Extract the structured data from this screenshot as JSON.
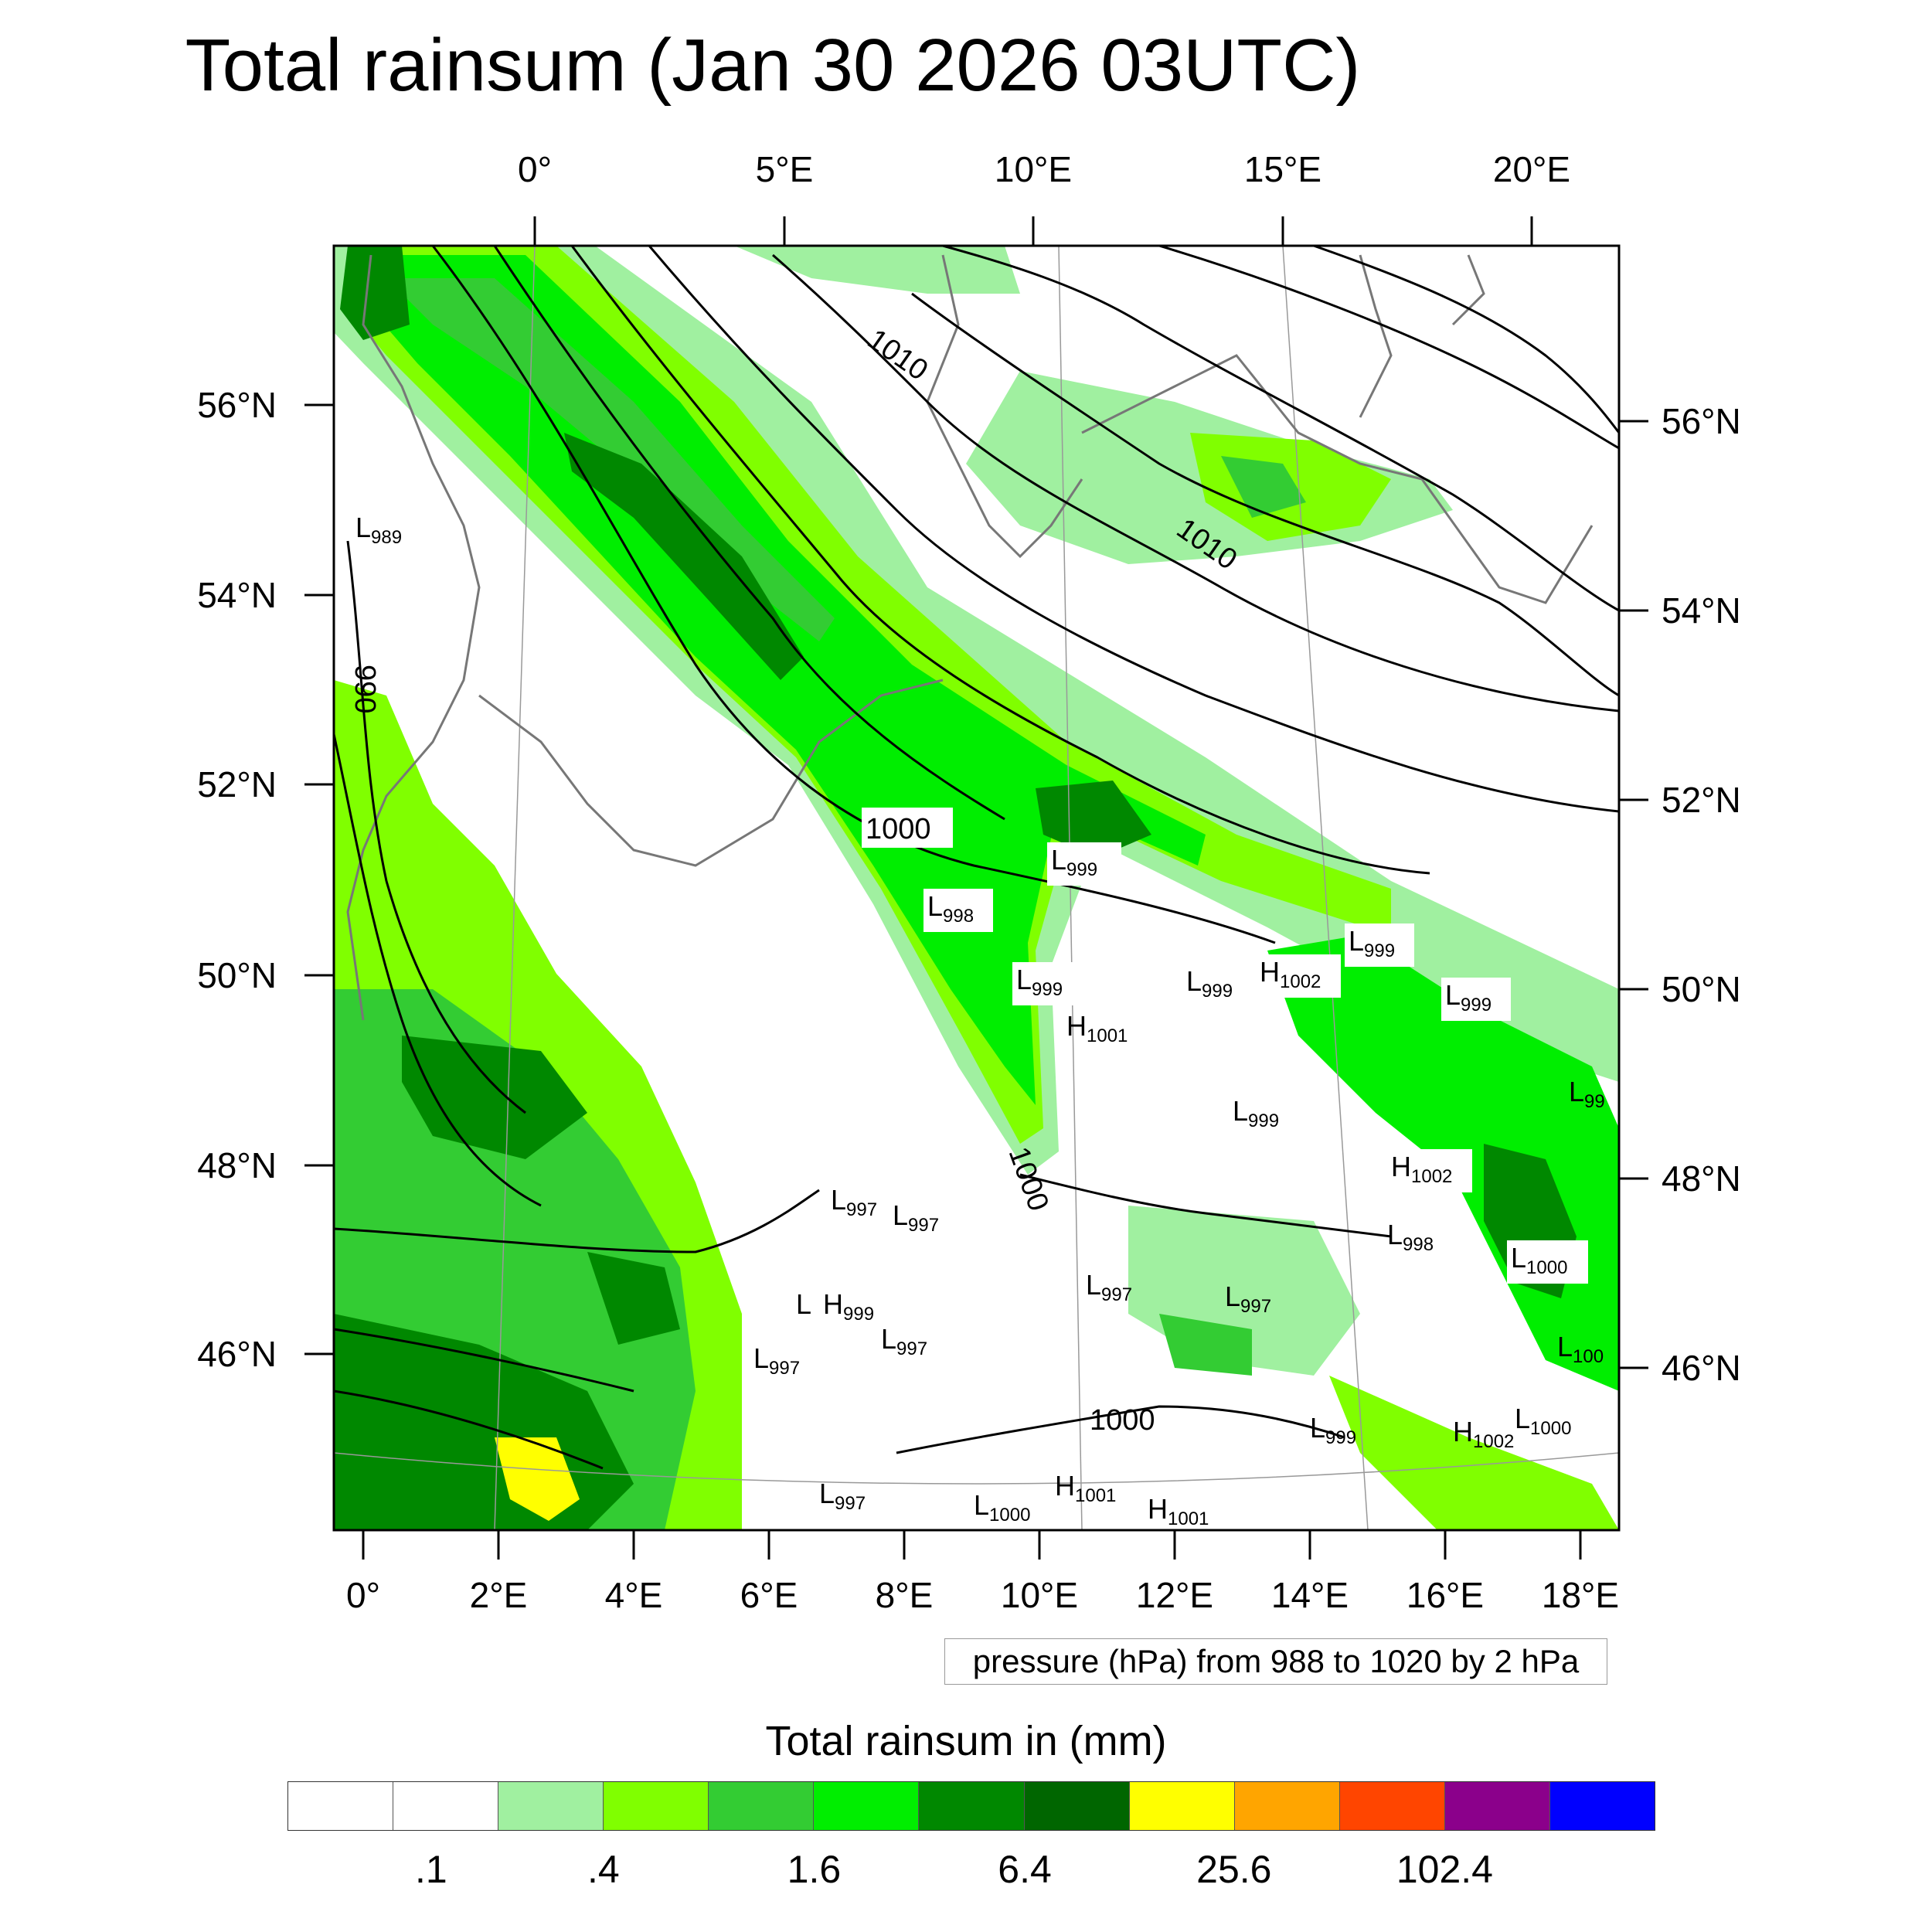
{
  "title": "Total rainsum (Jan 30 2026 03UTC)",
  "top_axis_labels": [
    "0°",
    "5°E",
    "10°E",
    "15°E",
    "20°E"
  ],
  "bottom_axis_labels": [
    "0°",
    "2°E",
    "4°E",
    "6°E",
    "8°E",
    "10°E",
    "12°E",
    "14°E",
    "16°E",
    "18°E"
  ],
  "left_axis_labels": [
    "56°N",
    "54°N",
    "52°N",
    "50°N",
    "48°N",
    "46°N"
  ],
  "right_axis_labels": [
    "56°N",
    "54°N",
    "52°N",
    "50°N",
    "48°N",
    "46°N"
  ],
  "contour_info": "pressure (hPa) from 988 to 1020 by 2 hPa",
  "colorbar_title": "Total rainsum in (mm)",
  "colorbar_colors": [
    "#ffffff",
    "#ffffff",
    "#a0f0a0",
    "#80ff00",
    "#33cc33",
    "#00ee00",
    "#008800",
    "#006600",
    "#ffff00",
    "#ffa500",
    "#ff4500",
    "#8b008b",
    "#0000ff"
  ],
  "colorbar_labels": [
    ".1",
    ".4",
    "1.6",
    "6.4",
    "25.6",
    "102.4"
  ],
  "isobar_labels": [
    "1010",
    "1010",
    "1000",
    "1000",
    "990",
    "1000"
  ],
  "pressure_centers": [
    {
      "type": "L",
      "value": "989"
    },
    {
      "type": "L",
      "value": "999"
    },
    {
      "type": "L",
      "value": "998"
    },
    {
      "type": "L",
      "value": "999"
    },
    {
      "type": "H",
      "value": "1001"
    },
    {
      "type": "L",
      "value": "999"
    },
    {
      "type": "H",
      "value": "1002"
    },
    {
      "type": "L",
      "value": "999"
    },
    {
      "type": "L",
      "value": "999"
    },
    {
      "type": "L",
      "value": "99"
    },
    {
      "type": "L",
      "value": "999"
    },
    {
      "type": "H",
      "value": "1002"
    },
    {
      "type": "L",
      "value": "997"
    },
    {
      "type": "L",
      "value": "997"
    },
    {
      "type": "L",
      "value": "998"
    },
    {
      "type": "L",
      "value": "1000"
    },
    {
      "type": "L",
      "value": "997"
    },
    {
      "type": "L",
      "value": "997"
    },
    {
      "type": "L",
      "value": ""
    },
    {
      "type": "H",
      "value": "999"
    },
    {
      "type": "L",
      "value": "997"
    },
    {
      "type": "L",
      "value": "997"
    },
    {
      "type": "L",
      "value": "100"
    },
    {
      "type": "L",
      "value": "999"
    },
    {
      "type": "H",
      "value": "1002"
    },
    {
      "type": "L",
      "value": "1000"
    },
    {
      "type": "L",
      "value": "997"
    },
    {
      "type": "L",
      "value": "1000"
    },
    {
      "type": "H",
      "value": "1001"
    },
    {
      "type": "H",
      "value": "1001"
    }
  ]
}
